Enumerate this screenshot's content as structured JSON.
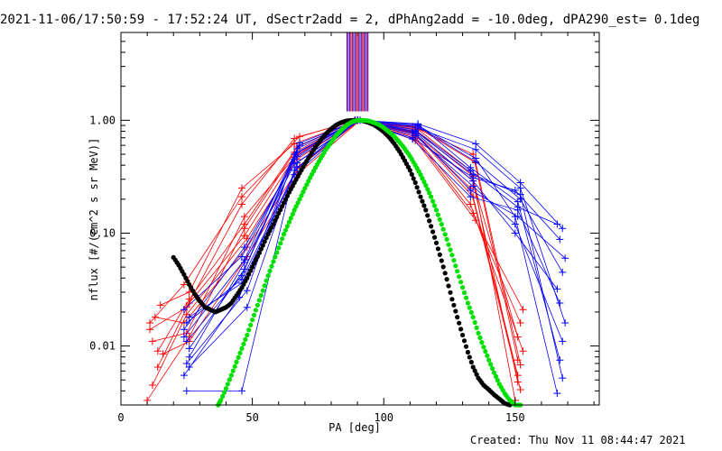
{
  "title": "2021-11-06/17:50:59 - 17:52:24 UT, dSectr2add = 2, dPhAng2add = -10.0deg, dPA290_est=  0.1deg",
  "footer": "Created: Thu Nov 11 08:44:47 2021",
  "colors": {
    "red": "#ff0000",
    "blue": "#0000ff",
    "green": "#00e000",
    "black": "#000000"
  },
  "chart_data": {
    "type": "line",
    "xlabel": "PA [deg]",
    "ylabel": "nflux [#/(cm^2 s sr MeV)]",
    "xlim": [
      0,
      182
    ],
    "ylim": [
      0.003,
      6
    ],
    "yscale": "log",
    "xticks": [
      0,
      50,
      100,
      150
    ],
    "xtick_labels": [
      "0",
      "50",
      "100",
      "150"
    ],
    "yticks": [
      0.01,
      0.1,
      1.0
    ],
    "ytick_labels": [
      "0.01",
      "0.10",
      "1.00"
    ],
    "vertical_markers": {
      "ymin": 1.2,
      "ymax": 6,
      "x": [
        86,
        86.5,
        87,
        87.5,
        88,
        88.5,
        89,
        89.5,
        90,
        90.5,
        91,
        91.5,
        92,
        92.5,
        93,
        93.5,
        94
      ],
      "colors": [
        "blue",
        "red",
        "blue",
        "red",
        "blue",
        "red",
        "blue",
        "red",
        "blue",
        "red",
        "blue",
        "red",
        "blue",
        "red",
        "blue",
        "red",
        "blue"
      ]
    },
    "fits": [
      {
        "color": "black",
        "x": [
          20,
          22,
          24,
          26,
          28,
          30,
          32,
          34,
          36,
          38,
          40,
          42,
          44,
          46,
          48,
          50,
          52,
          54,
          56,
          58,
          60,
          62,
          64,
          66,
          68,
          70,
          72,
          74,
          76,
          78,
          80,
          82,
          84,
          86,
          88,
          90,
          92,
          94,
          96,
          98,
          100,
          102,
          104,
          106,
          108,
          110,
          112,
          114,
          116,
          118,
          120,
          122,
          124,
          126,
          128,
          130,
          132,
          134,
          136,
          138,
          140,
          142,
          144,
          146,
          148
        ],
        "y": [
          0.061,
          0.052,
          0.043,
          0.035,
          0.029,
          0.025,
          0.022,
          0.021,
          0.02,
          0.021,
          0.022,
          0.024,
          0.028,
          0.033,
          0.04,
          0.05,
          0.062,
          0.078,
          0.098,
          0.12,
          0.15,
          0.185,
          0.23,
          0.28,
          0.34,
          0.41,
          0.49,
          0.58,
          0.67,
          0.76,
          0.84,
          0.91,
          0.96,
          0.99,
          1.0,
          1.0,
          0.99,
          0.96,
          0.92,
          0.86,
          0.79,
          0.71,
          0.62,
          0.53,
          0.44,
          0.36,
          0.28,
          0.21,
          0.16,
          0.115,
          0.082,
          0.057,
          0.039,
          0.026,
          0.018,
          0.0125,
          0.0088,
          0.0065,
          0.0052,
          0.0045,
          0.0041,
          0.0037,
          0.0034,
          0.0031,
          0.003
        ]
      },
      {
        "color": "green",
        "x": [
          37,
          38,
          40,
          42,
          44,
          46,
          48,
          50,
          52,
          54,
          56,
          58,
          60,
          62,
          64,
          66,
          68,
          70,
          72,
          74,
          76,
          78,
          80,
          82,
          84,
          86,
          88,
          90,
          92,
          94,
          96,
          98,
          100,
          102,
          104,
          106,
          108,
          110,
          112,
          114,
          116,
          118,
          120,
          122,
          124,
          126,
          128,
          130,
          132,
          134,
          136,
          138,
          140,
          142,
          144,
          146,
          148,
          150,
          152
        ],
        "y": [
          0.003,
          0.0033,
          0.0042,
          0.0055,
          0.0072,
          0.0095,
          0.0125,
          0.017,
          0.023,
          0.031,
          0.042,
          0.056,
          0.074,
          0.098,
          0.125,
          0.16,
          0.2,
          0.25,
          0.31,
          0.38,
          0.46,
          0.55,
          0.64,
          0.74,
          0.83,
          0.91,
          0.97,
          1.0,
          1.0,
          0.99,
          0.96,
          0.92,
          0.86,
          0.79,
          0.72,
          0.64,
          0.56,
          0.48,
          0.4,
          0.33,
          0.265,
          0.21,
          0.16,
          0.12,
          0.088,
          0.064,
          0.046,
          0.033,
          0.024,
          0.018,
          0.013,
          0.0098,
          0.0075,
          0.0058,
          0.0046,
          0.0038,
          0.0033,
          0.003,
          0.003
        ]
      }
    ],
    "series": [
      {
        "color": "red",
        "x": [
          10,
          26,
          47,
          66,
          90,
          112,
          134,
          150
        ],
        "y": [
          0.0033,
          0.012,
          0.11,
          0.52,
          1.0,
          0.82,
          0.32,
          0.0033
        ]
      },
      {
        "color": "red",
        "x": [
          12,
          25,
          48,
          67,
          90,
          112,
          133,
          152
        ],
        "y": [
          0.0045,
          0.019,
          0.09,
          0.45,
          1.0,
          0.75,
          0.25,
          0.0041
        ]
      },
      {
        "color": "red",
        "x": [
          14,
          26,
          47,
          67,
          90,
          111,
          134,
          151
        ],
        "y": [
          0.009,
          0.026,
          0.12,
          0.58,
          1.0,
          0.8,
          0.21,
          0.0055
        ]
      },
      {
        "color": "red",
        "x": [
          11,
          25,
          46,
          66,
          89,
          113,
          135,
          152
        ],
        "y": [
          0.014,
          0.022,
          0.18,
          0.69,
          1.0,
          0.86,
          0.42,
          0.0068
        ]
      },
      {
        "color": "red",
        "x": [
          13,
          24,
          48,
          68,
          91,
          112,
          133,
          153
        ],
        "y": [
          0.018,
          0.016,
          0.075,
          0.39,
          1.0,
          0.71,
          0.18,
          0.009
        ]
      },
      {
        "color": "red",
        "x": [
          15,
          26,
          46,
          66,
          90,
          111,
          134,
          151
        ],
        "y": [
          0.023,
          0.03,
          0.25,
          0.62,
          1.0,
          0.78,
          0.29,
          0.012
        ]
      },
      {
        "color": "red",
        "x": [
          12,
          25,
          47,
          67,
          90,
          112,
          134,
          152
        ],
        "y": [
          0.011,
          0.013,
          0.14,
          0.5,
          1.0,
          0.69,
          0.15,
          0.016
        ]
      },
      {
        "color": "red",
        "x": [
          14,
          26,
          47,
          66,
          89,
          113,
          133,
          151
        ],
        "y": [
          0.0065,
          0.024,
          0.095,
          0.47,
          1.0,
          0.83,
          0.36,
          0.0048
        ]
      },
      {
        "color": "red",
        "x": [
          16,
          26,
          48,
          67,
          91,
          112,
          135,
          153
        ],
        "y": [
          0.0085,
          0.011,
          0.062,
          0.33,
          1.0,
          0.66,
          0.13,
          0.021
        ]
      },
      {
        "color": "red",
        "x": [
          11,
          24,
          46,
          68,
          90,
          111,
          134,
          151
        ],
        "y": [
          0.016,
          0.035,
          0.21,
          0.72,
          1.0,
          0.88,
          0.5,
          0.0075
        ]
      },
      {
        "color": "blue",
        "x": [
          25,
          46,
          66,
          90,
          113,
          135,
          150,
          166
        ],
        "y": [
          0.004,
          0.004,
          0.36,
          1.0,
          0.9,
          0.46,
          0.14,
          0.0038
        ]
      },
      {
        "color": "blue",
        "x": [
          24,
          45,
          67,
          90,
          112,
          134,
          152,
          168
        ],
        "y": [
          0.0055,
          0.027,
          0.52,
          1.0,
          0.8,
          0.33,
          0.22,
          0.0052
        ]
      },
      {
        "color": "blue",
        "x": [
          26,
          47,
          66,
          91,
          113,
          133,
          151,
          167
        ],
        "y": [
          0.008,
          0.055,
          0.41,
          1.0,
          0.92,
          0.38,
          0.19,
          0.0075
        ]
      },
      {
        "color": "blue",
        "x": [
          25,
          46,
          68,
          90,
          112,
          134,
          150,
          168
        ],
        "y": [
          0.011,
          0.042,
          0.6,
          1.0,
          0.73,
          0.26,
          0.12,
          0.011
        ]
      },
      {
        "color": "blue",
        "x": [
          24,
          47,
          67,
          89,
          113,
          135,
          152,
          169
        ],
        "y": [
          0.014,
          0.075,
          0.48,
          1.0,
          0.85,
          0.55,
          0.25,
          0.016
        ]
      },
      {
        "color": "blue",
        "x": [
          26,
          46,
          66,
          90,
          111,
          133,
          151,
          167
        ],
        "y": [
          0.018,
          0.036,
          0.33,
          1.0,
          0.68,
          0.21,
          0.16,
          0.024
        ]
      },
      {
        "color": "blue",
        "x": [
          25,
          48,
          67,
          91,
          112,
          134,
          150,
          166
        ],
        "y": [
          0.007,
          0.031,
          0.56,
          1.0,
          0.78,
          0.29,
          0.1,
          0.032
        ]
      },
      {
        "color": "blue",
        "x": [
          24,
          46,
          66,
          90,
          113,
          135,
          152,
          168
        ],
        "y": [
          0.021,
          0.062,
          0.45,
          1.0,
          0.88,
          0.43,
          0.2,
          0.045
        ]
      },
      {
        "color": "blue",
        "x": [
          26,
          47,
          68,
          90,
          112,
          133,
          151,
          169
        ],
        "y": [
          0.0095,
          0.048,
          0.63,
          1.0,
          0.76,
          0.24,
          0.14,
          0.06
        ]
      },
      {
        "color": "blue",
        "x": [
          25,
          46,
          67,
          89,
          111,
          134,
          150,
          167
        ],
        "y": [
          0.016,
          0.039,
          0.38,
          1.0,
          0.7,
          0.31,
          0.24,
          0.088
        ]
      },
      {
        "color": "blue",
        "x": [
          24,
          47,
          66,
          91,
          113,
          135,
          152,
          168
        ],
        "y": [
          0.012,
          0.058,
          0.5,
          1.0,
          0.93,
          0.62,
          0.28,
          0.11
        ]
      },
      {
        "color": "blue",
        "x": [
          26,
          48,
          67,
          90,
          112,
          133,
          151,
          166
        ],
        "y": [
          0.0065,
          0.022,
          0.42,
          1.0,
          0.82,
          0.36,
          0.17,
          0.12
        ]
      }
    ]
  }
}
